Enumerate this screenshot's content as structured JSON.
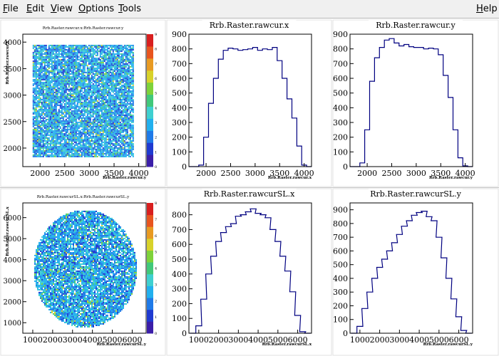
{
  "menu": {
    "items": [
      {
        "mnemonic": "F",
        "rest": "ile"
      },
      {
        "mnemonic": "E",
        "rest": "dit"
      },
      {
        "mnemonic": "V",
        "rest": "iew"
      },
      {
        "mnemonic": "O",
        "rest": "ptions"
      },
      {
        "mnemonic": "T",
        "rest": "ools"
      }
    ],
    "help": {
      "mnemonic": "H",
      "rest": "elp"
    }
  },
  "colors": {
    "histogram_line": "#000080",
    "palette": [
      "#3b1ea8",
      "#1f3ad0",
      "#1f7ae8",
      "#22b0ee",
      "#3fd0d0",
      "#41c87a",
      "#7ed23a",
      "#d8d22a",
      "#e89a22",
      "#e8551f",
      "#d81f1f"
    ]
  },
  "chart_data": [
    {
      "type": "heatmap",
      "title": "Rrb.Raster.rawcur.x:Rrb.Raster.rawcur.y",
      "xlabel": "Rrb.Raster.rawcur.y",
      "ylabel": "Rrb.Raster.rawcur.x",
      "xlim": [
        1650,
        4150
      ],
      "ylim": [
        1650,
        4150
      ],
      "x_ticks": [
        2000,
        2500,
        3000,
        3500,
        4000
      ],
      "y_ticks": [
        2000,
        2500,
        3000,
        3500,
        4000
      ],
      "palette_ticks": [
        0,
        1,
        2,
        3,
        4,
        5,
        6,
        7,
        8,
        9
      ],
      "shape": "square",
      "region": {
        "x": [
          1850,
          3900
        ],
        "y": [
          1850,
          3950
        ]
      }
    },
    {
      "type": "histogram",
      "title": "Rrb.Raster.rawcur.x",
      "xlabel": "Rrb.Raster.rawcur.x",
      "xlim": [
        1650,
        4150
      ],
      "ylim": [
        0,
        900
      ],
      "x_ticks": [
        2000,
        2500,
        3000,
        3500,
        4000
      ],
      "y_ticks": [
        0,
        100,
        200,
        300,
        400,
        500,
        600,
        700,
        800,
        900
      ],
      "x": [
        1700,
        1800,
        1900,
        2000,
        2100,
        2200,
        2300,
        2400,
        2500,
        2600,
        2700,
        2800,
        2900,
        3000,
        3100,
        3200,
        3300,
        3400,
        3500,
        3600,
        3700,
        3800,
        3900,
        4000,
        4100
      ],
      "values": [
        0,
        0,
        10,
        200,
        430,
        600,
        730,
        790,
        805,
        800,
        790,
        795,
        800,
        810,
        790,
        800,
        795,
        810,
        720,
        600,
        460,
        330,
        140,
        10,
        0
      ]
    },
    {
      "type": "histogram",
      "title": "Rrb.Raster.rawcur.y",
      "xlabel": "Rrb.Raster.rawcur.y",
      "xlim": [
        1650,
        4150
      ],
      "ylim": [
        0,
        900
      ],
      "x_ticks": [
        2000,
        2500,
        3000,
        3500,
        4000
      ],
      "y_ticks": [
        0,
        100,
        200,
        300,
        400,
        500,
        600,
        700,
        800,
        900
      ],
      "x": [
        1700,
        1800,
        1900,
        2000,
        2100,
        2200,
        2300,
        2400,
        2500,
        2600,
        2700,
        2800,
        2900,
        3000,
        3100,
        3200,
        3300,
        3400,
        3500,
        3600,
        3700,
        3800,
        3900,
        4000,
        4100
      ],
      "values": [
        0,
        0,
        25,
        250,
        580,
        740,
        810,
        860,
        870,
        840,
        820,
        830,
        815,
        810,
        810,
        800,
        805,
        800,
        760,
        620,
        470,
        250,
        60,
        5,
        0
      ]
    },
    {
      "type": "heatmap",
      "title": "Rrb.Raster.rawcurSL.x:Rrb.Raster.rawcurSL.y",
      "xlabel": "Rrb.Raster.rawcurSL.y",
      "ylabel": "Rrb.Raster.rawcurSL.x",
      "xlim": [
        500,
        6700
      ],
      "ylim": [
        500,
        6700
      ],
      "x_ticks": [
        1000,
        2000,
        3000,
        4000,
        5000,
        6000
      ],
      "y_ticks": [
        1000,
        2000,
        3000,
        4000,
        5000,
        6000
      ],
      "palette_ticks": [
        0,
        1,
        2,
        3,
        4,
        5,
        6,
        7,
        8
      ],
      "shape": "ellipse",
      "region": {
        "x": [
          1000,
          6200
        ],
        "y": [
          800,
          6400
        ]
      }
    },
    {
      "type": "histogram",
      "title": "Rrb.Raster.rawcurSL.x",
      "xlabel": "Rrb.Raster.rawcurSL.x",
      "xlim": [
        500,
        6700
      ],
      "ylim": [
        0,
        880
      ],
      "x_ticks": [
        1000,
        2000,
        3000,
        4000,
        5000,
        6000
      ],
      "y_ticks": [
        0,
        100,
        200,
        300,
        400,
        500,
        600,
        700,
        800
      ],
      "x": [
        700,
        1000,
        1250,
        1500,
        1750,
        2000,
        2250,
        2500,
        2750,
        3000,
        3250,
        3500,
        3750,
        4000,
        4250,
        4500,
        4750,
        5000,
        5250,
        5500,
        5750,
        6000,
        6250,
        6500
      ],
      "values": [
        0,
        50,
        230,
        400,
        520,
        620,
        680,
        720,
        740,
        790,
        800,
        820,
        840,
        810,
        800,
        780,
        700,
        620,
        520,
        420,
        280,
        120,
        10,
        0
      ]
    },
    {
      "type": "histogram",
      "title": "Rrb.Raster.rawcurSL.y",
      "xlabel": "Rrb.Raster.rawcurSL.y",
      "xlim": [
        500,
        6700
      ],
      "ylim": [
        0,
        950
      ],
      "x_ticks": [
        1000,
        2000,
        3000,
        4000,
        5000,
        6000
      ],
      "y_ticks": [
        0,
        100,
        200,
        300,
        400,
        500,
        600,
        700,
        800,
        900
      ],
      "x": [
        700,
        1000,
        1250,
        1500,
        1750,
        2000,
        2250,
        2500,
        2750,
        3000,
        3250,
        3500,
        3750,
        4000,
        4250,
        4500,
        4750,
        5000,
        5250,
        5500,
        5750,
        6000,
        6250,
        6500
      ],
      "values": [
        0,
        50,
        180,
        300,
        400,
        480,
        540,
        600,
        660,
        720,
        780,
        820,
        860,
        880,
        890,
        850,
        820,
        700,
        550,
        400,
        250,
        120,
        20,
        0
      ]
    }
  ]
}
